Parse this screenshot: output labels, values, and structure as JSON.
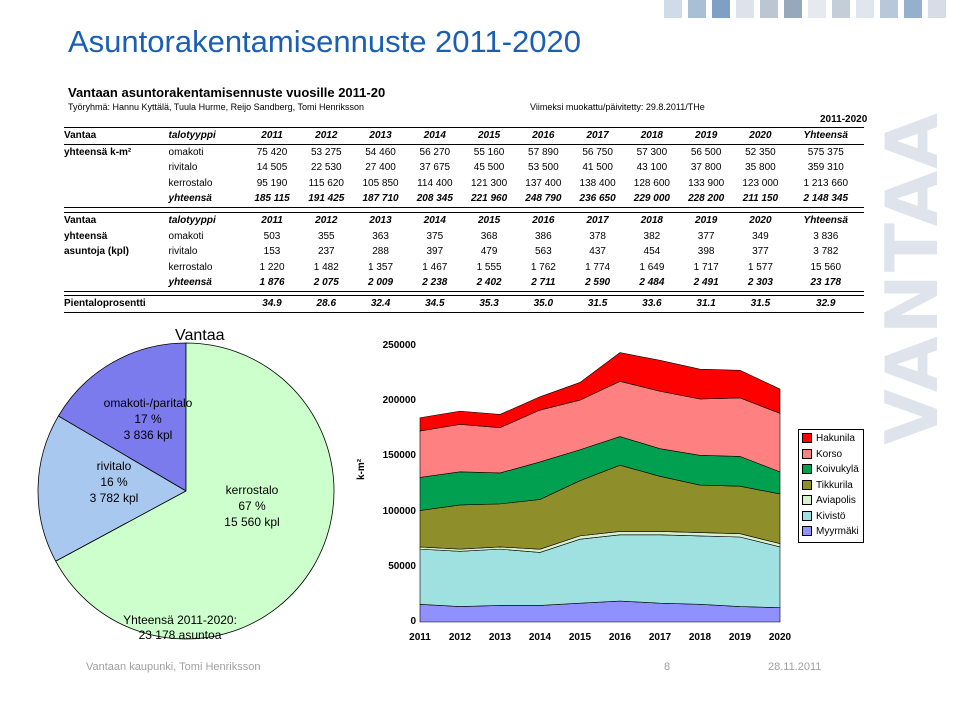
{
  "header": {
    "title": "Asuntorakentamisennuste 2011-2020",
    "subtitle": "Vantaan asuntorakentamisennuste vuosille 2011-20",
    "authors": "Työryhmä: Hannu Kyttälä, Tuula Hurme, Reijo Sandberg, Tomi Henriksson",
    "updated": "Viimeksi muokattu/päivitetty: 29.8.2011/THe",
    "period": "2011-2020"
  },
  "years": [
    "2011",
    "2012",
    "2013",
    "2014",
    "2015",
    "2016",
    "2017",
    "2018",
    "2019",
    "2020"
  ],
  "table_area": {
    "region": "Vantaa",
    "rowlabel1": "yhteensä k-m²",
    "type_header": "talotyyppi",
    "total_header": "Yhteensä",
    "rows": [
      {
        "type": "omakoti",
        "values": [
          "75 420",
          "53 275",
          "54 460",
          "56 270",
          "55 160",
          "57 890",
          "56 750",
          "57 300",
          "56 500",
          "52 350"
        ],
        "total": "575 375"
      },
      {
        "type": "rivitalo",
        "values": [
          "14 505",
          "22 530",
          "27 400",
          "37 675",
          "45 500",
          "53 500",
          "41 500",
          "43 100",
          "37 800",
          "35 800"
        ],
        "total": "359 310"
      },
      {
        "type": "kerrostalo",
        "values": [
          "95 190",
          "115 620",
          "105 850",
          "114 400",
          "121 300",
          "137 400",
          "138 400",
          "128 600",
          "133 900",
          "123 000"
        ],
        "total": "1 213 660"
      },
      {
        "type": "yhteensä",
        "values": [
          "185 115",
          "191 425",
          "187 710",
          "208 345",
          "221 960",
          "248 790",
          "236 650",
          "229 000",
          "228 200",
          "211 150"
        ],
        "total": "2 148 345"
      }
    ]
  },
  "table_count": {
    "region": "Vantaa",
    "rowlabel1": "yhteensä",
    "rowlabel2": "asuntoja (kpl)",
    "type_header": "talotyyppi",
    "total_header": "Yhteensä",
    "rows": [
      {
        "type": "omakoti",
        "values": [
          "503",
          "355",
          "363",
          "375",
          "368",
          "386",
          "378",
          "382",
          "377",
          "349"
        ],
        "total": "3 836"
      },
      {
        "type": "rivitalo",
        "values": [
          "153",
          "237",
          "288",
          "397",
          "479",
          "563",
          "437",
          "454",
          "398",
          "377"
        ],
        "total": "3 782"
      },
      {
        "type": "kerrostalo",
        "values": [
          "1 220",
          "1 482",
          "1 357",
          "1 467",
          "1 555",
          "1 762",
          "1 774",
          "1 649",
          "1 717",
          "1 577"
        ],
        "total": "15 560"
      },
      {
        "type": "yhteensä",
        "values": [
          "1 876",
          "2 075",
          "2 009",
          "2 238",
          "2 402",
          "2 711",
          "2 590",
          "2 484",
          "2 491",
          "2 303"
        ],
        "total": "23 178"
      }
    ]
  },
  "pientalo": {
    "label": "Pientaloprosentti",
    "values": [
      "34.9",
      "28.6",
      "32.4",
      "34.5",
      "35.3",
      "35.0",
      "31.5",
      "33.6",
      "31.1",
      "31.5"
    ],
    "total": "32.9"
  },
  "pie": {
    "title": "Vantaa",
    "labels": [
      {
        "line1": "omakoti-/paritalo",
        "line2": "17 %",
        "line3": "3 836 kpl"
      },
      {
        "line1": "rivitalo",
        "line2": "16 %",
        "line3": "3 782 kpl"
      },
      {
        "line1": "kerrostalo",
        "line2": "67 %",
        "line3": "15 560 kpl"
      }
    ],
    "total_line1": "Yhteensä 2011-2020:",
    "total_line2": "23 178 asuntoa"
  },
  "chart_data": [
    {
      "type": "pie",
      "title": "Vantaa",
      "categories": [
        "omakoti-/paritalo",
        "rivitalo",
        "kerrostalo"
      ],
      "values": [
        3836,
        3782,
        15560
      ],
      "colors": [
        "#7b7bee",
        "#a9c8f0",
        "#ccffcc"
      ]
    },
    {
      "type": "area",
      "stacked": true,
      "x": [
        2011,
        2012,
        2013,
        2014,
        2015,
        2016,
        2017,
        2018,
        2019,
        2020
      ],
      "ylabel": "k-m²",
      "ylim": [
        0,
        250000
      ],
      "yticks": [
        "0",
        "50000",
        "100000",
        "150000",
        "200000",
        "250000"
      ],
      "series": [
        {
          "name": "Myyrmäki",
          "color": "#9090ff",
          "values": [
            16000,
            14000,
            15000,
            15000,
            17000,
            19000,
            17000,
            16000,
            14000,
            13000
          ]
        },
        {
          "name": "Kivistö",
          "color": "#9fe0e0",
          "values": [
            50000,
            50000,
            51000,
            48000,
            58000,
            60000,
            62000,
            62000,
            63000,
            55000
          ]
        },
        {
          "name": "Aviapolis",
          "color": "#d8f0d0",
          "values": [
            2000,
            2000,
            2000,
            3000,
            3000,
            3000,
            3000,
            3000,
            3000,
            3000
          ]
        },
        {
          "name": "Tikkurila",
          "color": "#8e8e2a",
          "values": [
            33000,
            40000,
            39000,
            45000,
            50000,
            60000,
            50000,
            43000,
            43000,
            45000
          ]
        },
        {
          "name": "Koivukylä",
          "color": "#00a050",
          "values": [
            30000,
            30000,
            28000,
            34000,
            28000,
            26000,
            25000,
            27000,
            27000,
            20000
          ]
        },
        {
          "name": "Korso",
          "color": "#ff8080",
          "values": [
            42000,
            43000,
            41000,
            47000,
            45000,
            50000,
            52000,
            51000,
            53000,
            53000
          ]
        },
        {
          "name": "Hakunila",
          "color": "#ff0000",
          "values": [
            12000,
            12000,
            12000,
            12000,
            16000,
            26000,
            28000,
            27000,
            25000,
            22000
          ]
        }
      ]
    }
  ],
  "legend_items": [
    "Hakunila",
    "Korso",
    "Koivukylä",
    "Tikkurila",
    "Aviapolis",
    "Kivistö",
    "Myyrmäki"
  ],
  "footer": {
    "left": "Vantaan kaupunki, Tomi Henriksson",
    "page": "8",
    "date": "28.11.2011"
  },
  "logo": {
    "text": "VANTAA"
  },
  "colors": {
    "title": "#1a5fb4",
    "deco": [
      "#c8d8e8",
      "#a4c0dc",
      "#7f9fc4",
      "#d0d8e0",
      "#aeb8c4",
      "#8a96a4"
    ]
  }
}
